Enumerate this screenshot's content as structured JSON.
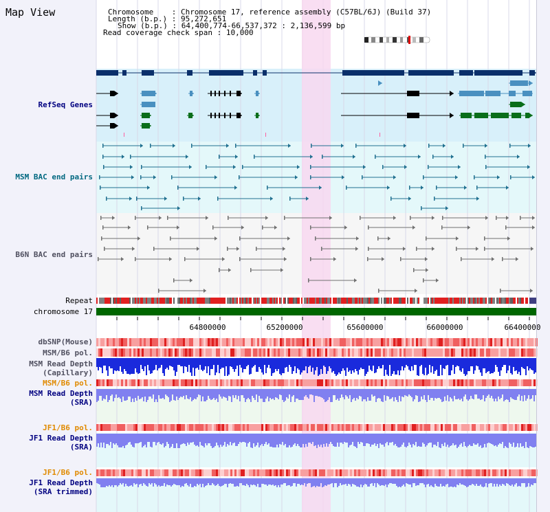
{
  "header": {
    "title": "Map View",
    "info": {
      "chromosome_label": "Chromosome",
      "chromosome_value": "Chromosome 17, reference assembly (C57BL/6J) (Build 37)",
      "length_label": "Length (b.p.)",
      "length_value": "95,272,651",
      "show_label": "Show (b.p.)",
      "show_value": "64,400,774-66,537,372 : 2,136,599 bp",
      "coverage_label": "Read coverage check span",
      "coverage_value": "10,000"
    }
  },
  "tracks": {
    "refseq": "RefSeq Genes",
    "msm_bac": "MSM BAC end pairs",
    "b6n_bac": "B6N BAC end pairs",
    "repeat": "Repeat",
    "chromosome": "chromosome 17",
    "dbsnp": "dbSNP(Mouse)",
    "msm_b6_pol_1": "MSM/B6 pol.",
    "msm_read_depth_cap_1": "MSM Read Depth",
    "msm_read_depth_cap_2": "(Capillary)",
    "msm_b6_pol_2": "MSM/B6 pol.",
    "msm_read_depth_sra_1": "MSM Read Depth",
    "msm_read_depth_sra_2": "(SRA)",
    "jf1_b6_pol_1": "JF1/B6 pol.",
    "jf1_read_depth_1": "JF1 Read Depth",
    "jf1_read_depth_2": "(SRA)",
    "jf1_b6_pol_2": "JF1/B6 pol.",
    "jf1_read_depth_trim_1": "JF1 Read Depth",
    "jf1_read_depth_trim_2": "(SRA trimmed)"
  },
  "axis": {
    "ticks": [
      "64800000",
      "65200000",
      "65600000",
      "66000000",
      "66400000"
    ]
  },
  "colors": {
    "gene_dark": "#0a2f6a",
    "gene_light": "#4a90c0",
    "gene_green": "#0a6e1a",
    "bac_teal": "#207090",
    "bac_gray": "#707070",
    "chromosome_bar": "#006600",
    "highlight": "#f8d8f0",
    "depth_blue": "#1a2adc",
    "depth_light": "#8080f0",
    "snp_red": "#f06060"
  }
}
